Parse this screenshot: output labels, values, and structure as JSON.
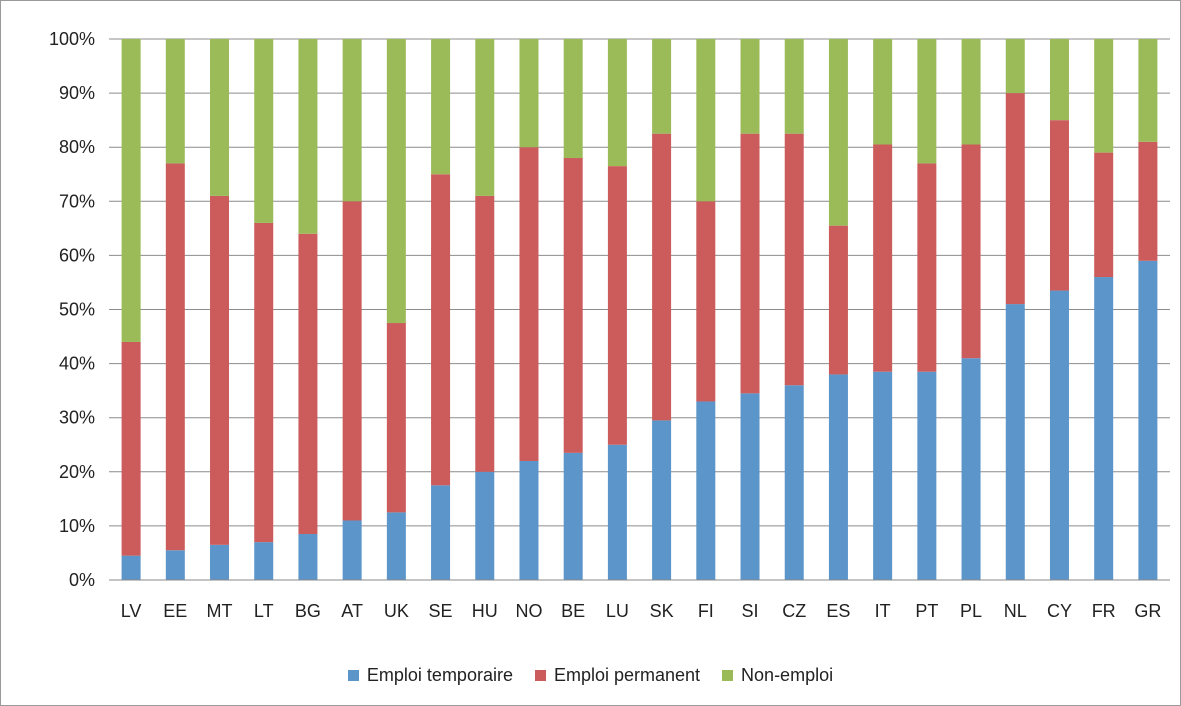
{
  "chart_data": {
    "type": "bar",
    "stacked": true,
    "percent": true,
    "ylim": [
      0,
      100
    ],
    "yticks": [
      0,
      10,
      20,
      30,
      40,
      50,
      60,
      70,
      80,
      90,
      100
    ],
    "ytick_labels": [
      "0%",
      "10%",
      "20%",
      "30%",
      "40%",
      "50%",
      "60%",
      "70%",
      "80%",
      "90%",
      "100%"
    ],
    "grid": true,
    "legend_position": "bottom",
    "categories": [
      "LV",
      "EE",
      "MT",
      "LT",
      "BG",
      "AT",
      "UK",
      "SE",
      "HU",
      "NO",
      "BE",
      "LU",
      "SK",
      "FI",
      "SI",
      "CZ",
      "ES",
      "IT",
      "PT",
      "PL",
      "NL",
      "CY",
      "FR",
      "GR"
    ],
    "series": [
      {
        "name": "Emploi temporaire",
        "color": "#5b95c9",
        "values": [
          4.5,
          5.5,
          6.5,
          7,
          8.5,
          11,
          12.5,
          17.5,
          20,
          22,
          23.5,
          25,
          29.5,
          33,
          34.5,
          36,
          38,
          38.5,
          38.5,
          41,
          51,
          53.5,
          56,
          59
        ]
      },
      {
        "name": "Emploi permanent",
        "color": "#cc5c5c",
        "values": [
          39.5,
          71.5,
          64.5,
          59,
          55.5,
          59,
          35,
          57.5,
          51,
          58,
          54.5,
          51.5,
          53,
          37,
          48,
          46.5,
          27.5,
          42,
          38.5,
          39.5,
          39,
          31.5,
          23,
          22
        ]
      },
      {
        "name": "Non-emploi",
        "color": "#9bbb59",
        "values": [
          56,
          23,
          29,
          34,
          36,
          30,
          52.5,
          25,
          29,
          20,
          22,
          23.5,
          17.5,
          30,
          17.5,
          17.5,
          34.5,
          19.5,
          23,
          19.5,
          10,
          15,
          21,
          19
        ]
      }
    ]
  }
}
